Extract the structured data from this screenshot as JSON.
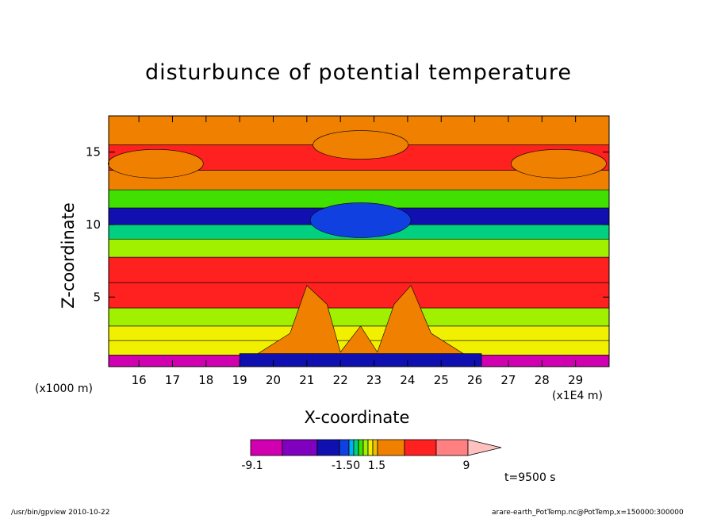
{
  "chart_data": {
    "type": "heatmap",
    "title": "disturbunce of potential temperature",
    "xlabel": "X-coordinate",
    "ylabel": "Z-coordinate",
    "x_unit": "(x1E4 m)",
    "y_unit": "(x1000 m)",
    "xlim": [
      15.1,
      30
    ],
    "ylim": [
      0.2,
      17.5
    ],
    "x_ticks": [
      16,
      17,
      18,
      19,
      20,
      21,
      22,
      23,
      24,
      25,
      26,
      27,
      28,
      29
    ],
    "y_ticks": [
      5,
      10,
      15
    ],
    "colorbar": {
      "tick_labels": [
        "-9.1",
        "-1.50",
        "1.5",
        "9"
      ],
      "colors": [
        "#d000b0",
        "#8000c0",
        "#1010b0",
        "#1040e0",
        "#00b0f0",
        "#00d080",
        "#40e000",
        "#a0f000",
        "#f0f000",
        "#f0c000",
        "#f08000",
        "#ff2020",
        "#ff8080",
        "#ffc0c0"
      ]
    },
    "levels_by_height": [
      {
        "z": 0.5,
        "value": -7
      },
      {
        "z": 1.5,
        "value": 0.9
      },
      {
        "z": 2.5,
        "value": 0.6
      },
      {
        "z": 3.5,
        "value": 0.4
      },
      {
        "z": 5.0,
        "value": 3.5
      },
      {
        "z": 7.0,
        "value": 4.0
      },
      {
        "z": 8.5,
        "value": 0.3
      },
      {
        "z": 9.5,
        "value": -0.8
      },
      {
        "z": 10.5,
        "value": -3.5
      },
      {
        "z": 11.8,
        "value": -0.2
      },
      {
        "z": 13.0,
        "value": 1.5
      },
      {
        "z": 14.5,
        "value": 3.0
      },
      {
        "z": 16.5,
        "value": 2.0
      }
    ]
  },
  "time_label": "t=9500 s",
  "footer_left": "/usr/bin/gpview   2010-10-22",
  "footer_right": "arare-earth_PotTemp.nc@PotTemp,x=150000:300000"
}
